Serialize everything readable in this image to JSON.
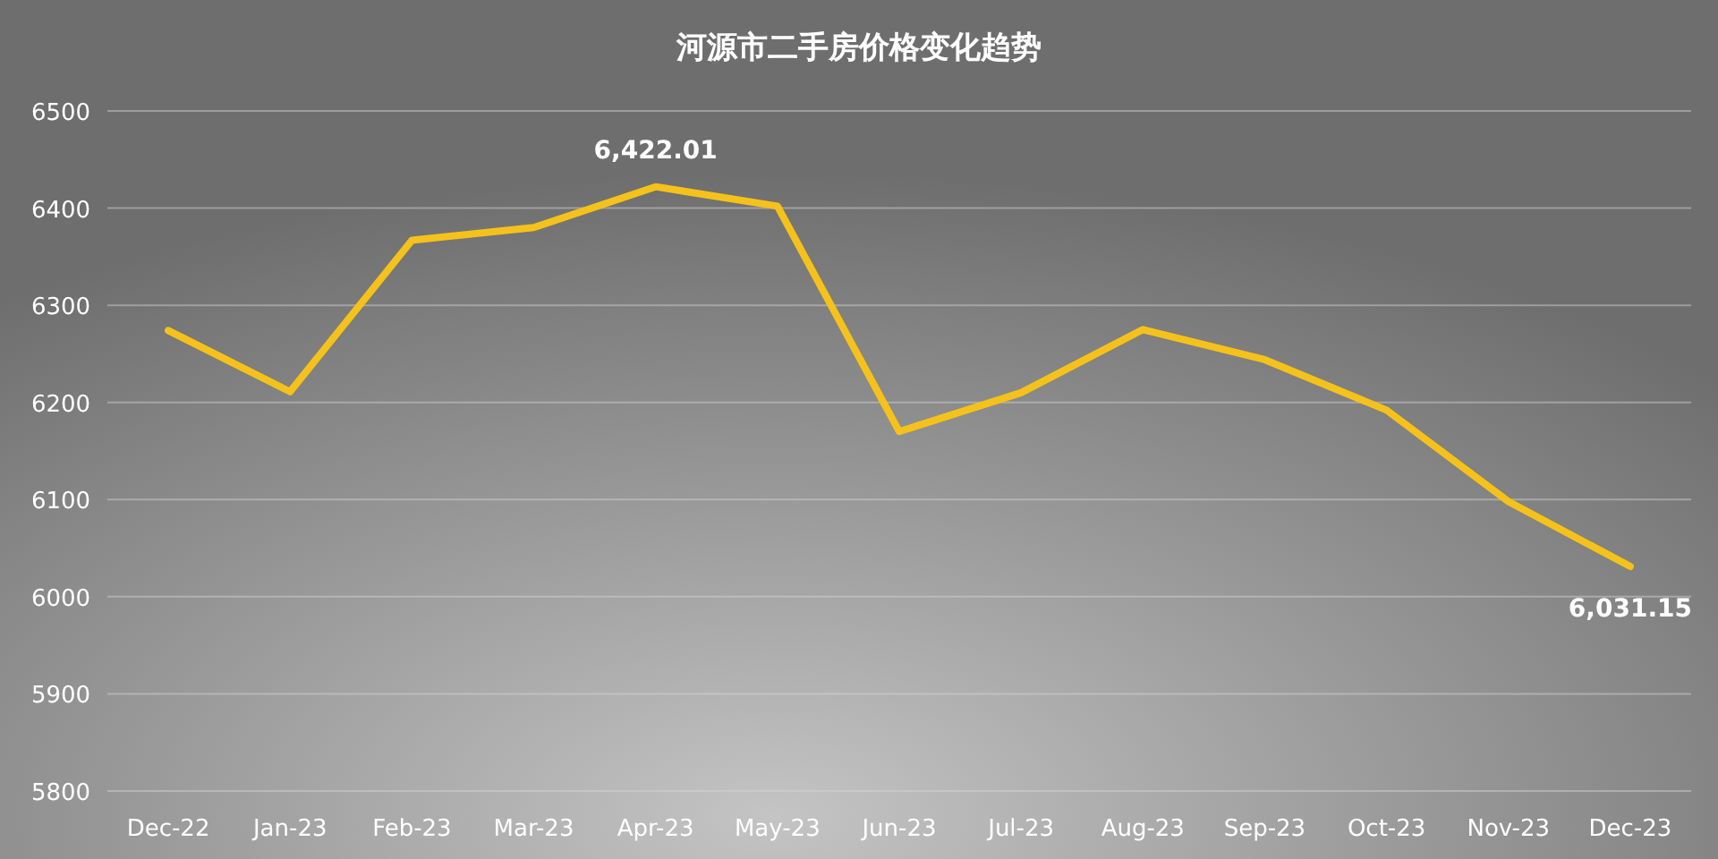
{
  "chart_data": {
    "type": "line",
    "title": "河源市二手房价格变化趋势",
    "categories": [
      "Dec-22",
      "Jan-23",
      "Feb-23",
      "Mar-23",
      "Apr-23",
      "May-23",
      "Jun-23",
      "Jul-23",
      "Aug-23",
      "Sep-23",
      "Oct-23",
      "Nov-23",
      "Dec-23"
    ],
    "series": [
      {
        "color": "#f5c21b",
        "values": [
          6274,
          6211,
          6367,
          6380,
          6422.01,
          6402,
          6170,
          6210,
          6275,
          6244,
          6192,
          6098,
          6031.15
        ],
        "value_labels": [
          null,
          null,
          null,
          null,
          "6,422.01",
          null,
          null,
          null,
          null,
          null,
          null,
          null,
          "6,031.15"
        ]
      }
    ],
    "ylim": [
      5800,
      6500
    ],
    "yticks": [
      5800,
      5900,
      6000,
      6100,
      6200,
      6300,
      6400,
      6500
    ],
    "grid": "y",
    "marker": "none",
    "line_style": "solid"
  }
}
